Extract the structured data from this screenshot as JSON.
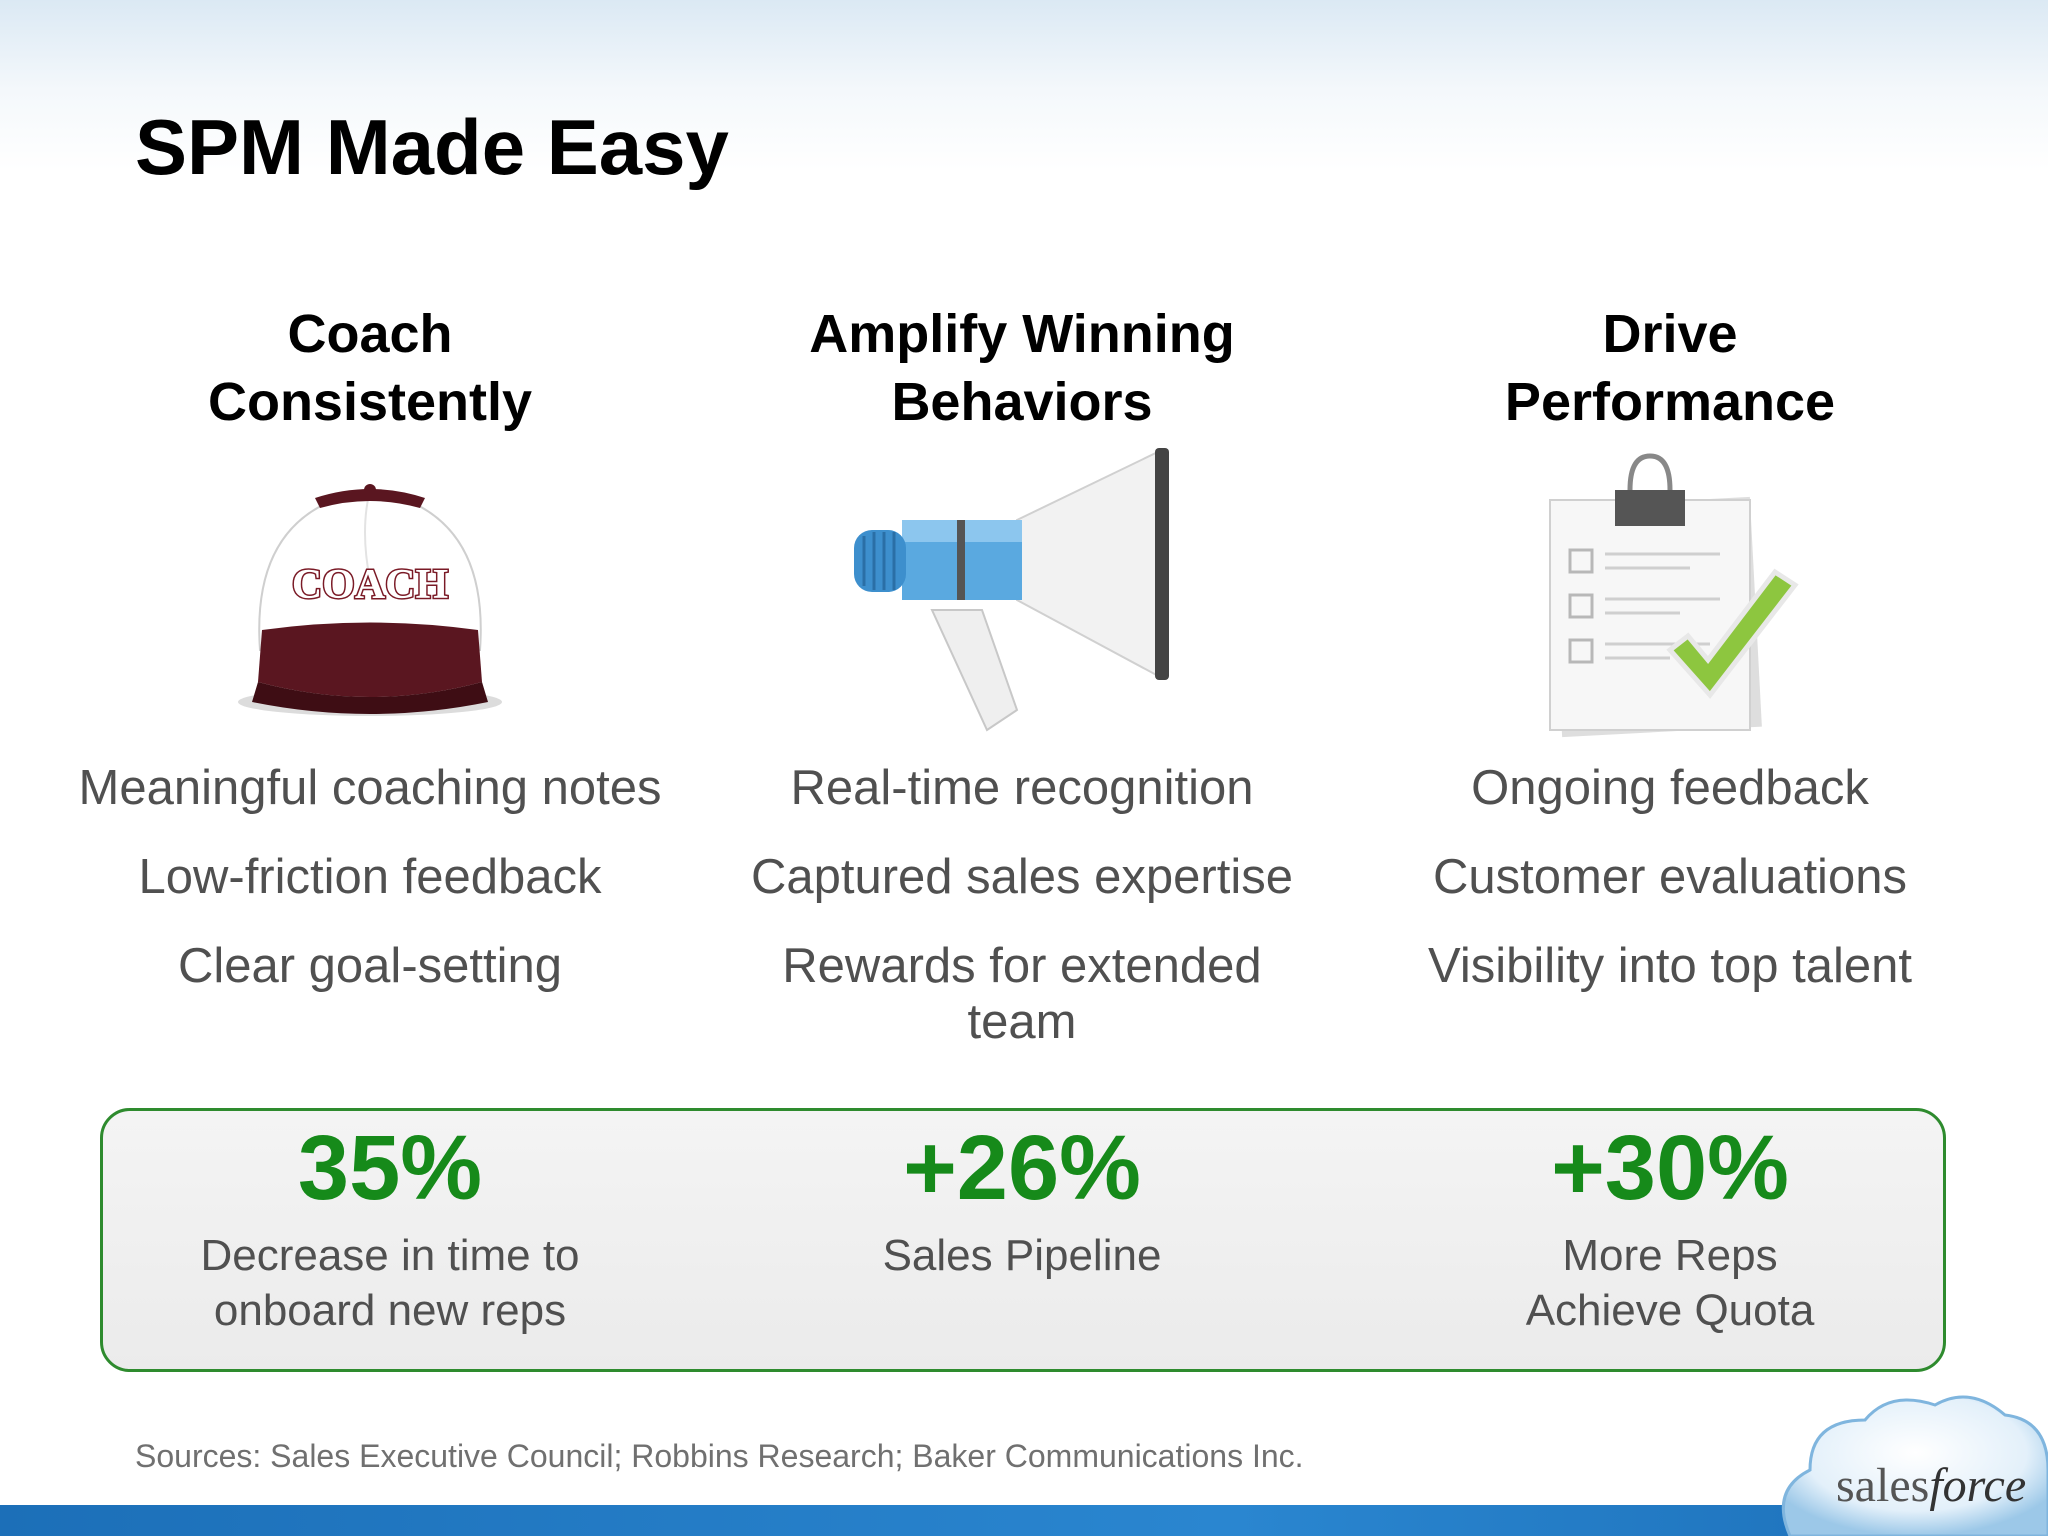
{
  "title": "SPM Made Easy",
  "columns": [
    {
      "heading_line1": "Coach",
      "heading_line2": "Consistently",
      "icon": "coach-cap-icon",
      "cap_text": "COACH",
      "bullets": [
        "Meaningful coaching notes",
        "Low-friction feedback",
        "Clear goal-setting"
      ]
    },
    {
      "heading_line1": "Amplify Winning",
      "heading_line2": "Behaviors",
      "icon": "megaphone-icon",
      "bullets": [
        "Real-time recognition",
        "Captured sales expertise",
        "Rewards for extended team"
      ]
    },
    {
      "heading_line1": "Drive",
      "heading_line2": "Performance",
      "icon": "clipboard-check-icon",
      "bullets": [
        "Ongoing feedback",
        "Customer evaluations",
        "Visibility into top talent"
      ]
    }
  ],
  "stats": [
    {
      "value": "35%",
      "label_line1": "Decrease in time to",
      "label_line2": "onboard new reps"
    },
    {
      "value": "+26%",
      "label_line1": "Sales Pipeline",
      "label_line2": ""
    },
    {
      "value": "+30%",
      "label_line1": "More Reps",
      "label_line2": "Achieve Quota"
    }
  ],
  "sources": "Sources: Sales Executive Council; Robbins Research; Baker Communications Inc.",
  "logo": {
    "prefix": "sales",
    "suffix": "force",
    "icon": "salesforce-cloud-logo"
  },
  "colors": {
    "accent_green": "#168a1a",
    "panel_border": "#2e8b2e",
    "brand_blue": "#1c6fb8",
    "cap_maroon": "#5a1620"
  }
}
